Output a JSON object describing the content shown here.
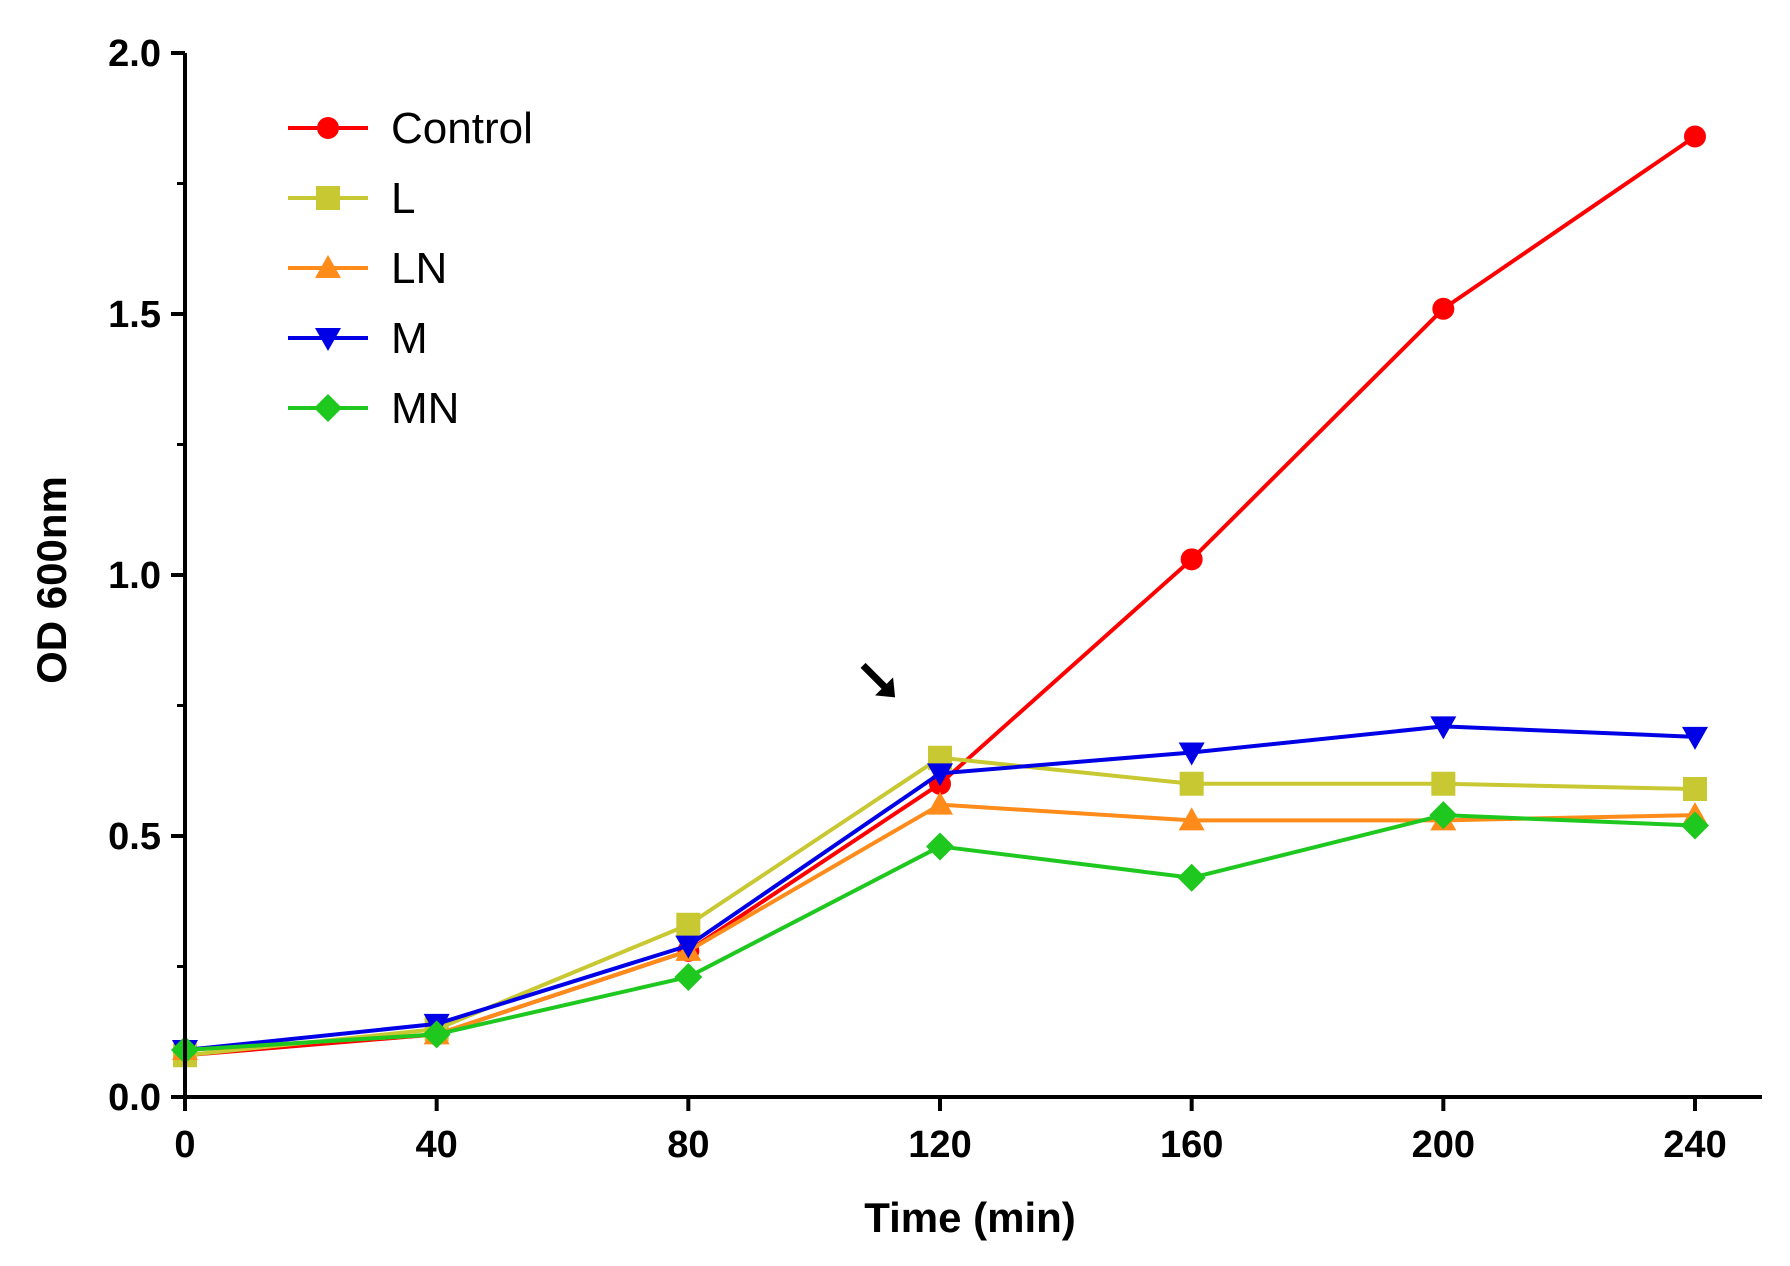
{
  "chart_data": {
    "type": "line",
    "xlabel": "Time (min)",
    "ylabel": "OD 600nm",
    "xlim": [
      0,
      250
    ],
    "ylim": [
      0,
      2.0
    ],
    "x_ticks": [
      0,
      40,
      80,
      120,
      160,
      200,
      240
    ],
    "y_ticks": [
      0.0,
      0.5,
      1.0,
      1.5,
      2.0
    ],
    "x_tick_labels": [
      "0",
      "40",
      "80",
      "120",
      "160",
      "200",
      "240"
    ],
    "y_tick_labels": [
      "0.0",
      "0.5",
      "1.0",
      "1.5",
      "2.0"
    ],
    "x": [
      0,
      40,
      80,
      120,
      160,
      200,
      240
    ],
    "legend_position": "top-left",
    "grid": false,
    "annotations": [
      {
        "type": "arrow",
        "x": 110,
        "y": 0.8
      }
    ],
    "series": [
      {
        "name": "Control",
        "color": "#ff0000",
        "marker": "circle",
        "values": [
          0.08,
          0.12,
          0.28,
          0.6,
          1.03,
          1.51,
          1.84
        ]
      },
      {
        "name": "L",
        "color": "#c8c832",
        "marker": "square",
        "values": [
          0.08,
          0.13,
          0.33,
          0.65,
          0.6,
          0.6,
          0.59
        ]
      },
      {
        "name": "LN",
        "color": "#ff8c1a",
        "marker": "triangle-up",
        "values": [
          0.09,
          0.12,
          0.28,
          0.56,
          0.53,
          0.53,
          0.54
        ]
      },
      {
        "name": "M",
        "color": "#0000e6",
        "marker": "triangle-down",
        "values": [
          0.09,
          0.14,
          0.29,
          0.62,
          0.66,
          0.71,
          0.69
        ]
      },
      {
        "name": "MN",
        "color": "#1ec81e",
        "marker": "diamond",
        "values": [
          0.09,
          0.12,
          0.23,
          0.48,
          0.42,
          0.54,
          0.52
        ]
      }
    ]
  }
}
